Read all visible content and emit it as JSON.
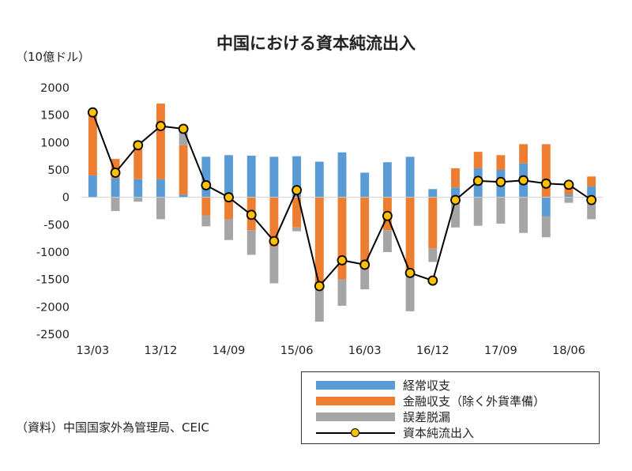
{
  "chart_data": {
    "type": "bar",
    "title": "中国における資本純流出入",
    "unit_label": "（10億ドル）",
    "ylim": [
      -2500,
      2000
    ],
    "yticks": [
      2000,
      1500,
      1000,
      500,
      0,
      -500,
      -1000,
      -1500,
      -2000,
      -2500
    ],
    "x_tick_labels": [
      "13/03",
      "13/12",
      "14/09",
      "15/06",
      "16/03",
      "16/12",
      "17/09",
      "18/06"
    ],
    "categories": [
      "13/03",
      "13/06",
      "13/09",
      "13/12",
      "14/03",
      "14/06",
      "14/09",
      "14/12",
      "15/03",
      "15/06",
      "15/09",
      "15/12",
      "16/03",
      "16/06",
      "16/09",
      "16/12",
      "17/03",
      "17/06",
      "17/09",
      "17/12",
      "18/03",
      "18/06",
      "18/09"
    ],
    "stacked": true,
    "series": [
      {
        "name": "経常収支",
        "type": "bar",
        "color": "#5B9BD5",
        "values": [
          400,
          350,
          330,
          330,
          50,
          740,
          770,
          760,
          740,
          750,
          650,
          820,
          450,
          640,
          740,
          150,
          180,
          530,
          500,
          620,
          -350,
          50,
          200
        ]
      },
      {
        "name": "金融収支（除く外貨準備）",
        "type": "bar",
        "color": "#ED7D31",
        "values": [
          1150,
          350,
          700,
          1380,
          900,
          -330,
          -400,
          -600,
          -900,
          -550,
          -1650,
          -1500,
          -1300,
          -600,
          -1360,
          -930,
          350,
          300,
          270,
          350,
          970,
          200,
          180
        ]
      },
      {
        "name": "誤差脱漏",
        "type": "bar",
        "color": "#A5A5A5",
        "values": [
          0,
          -250,
          -80,
          -400,
          300,
          -200,
          -380,
          -450,
          -670,
          -70,
          -620,
          -480,
          -380,
          -400,
          -720,
          -250,
          -550,
          -520,
          -480,
          -650,
          -380,
          -100,
          -400
        ]
      },
      {
        "name": "資本純流出入",
        "type": "line",
        "color": "#000000",
        "marker_color": "#FFC000",
        "values": [
          1550,
          450,
          950,
          1300,
          1250,
          220,
          0,
          -320,
          -800,
          130,
          -1620,
          -1150,
          -1230,
          -340,
          -1380,
          -1520,
          -50,
          300,
          280,
          310,
          250,
          230,
          -50
        ]
      }
    ],
    "legend_position": "bottom-right",
    "grid": false
  },
  "source_note": "（資料）中国国家外為管理局、CEIC"
}
